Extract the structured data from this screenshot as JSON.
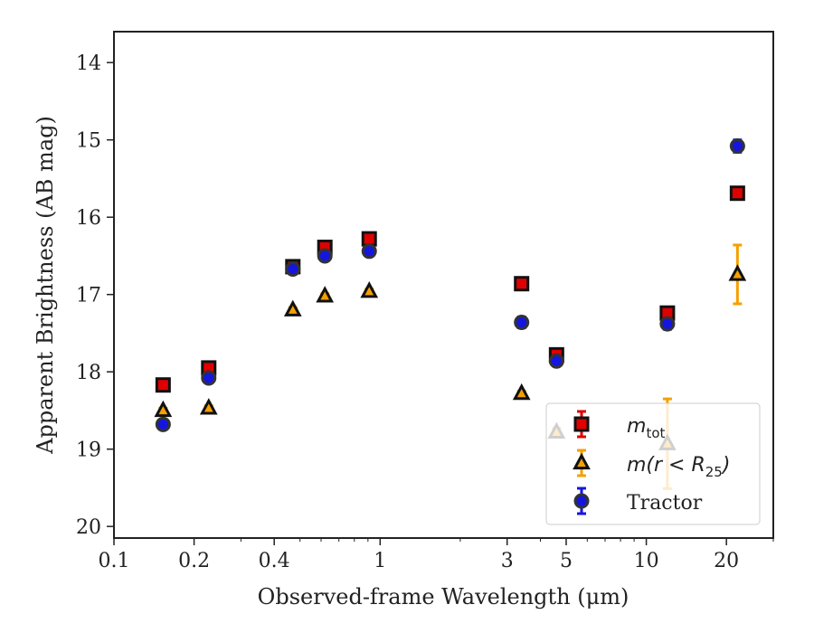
{
  "chart_data": {
    "type": "scatter",
    "xlabel": "Observed-frame Wavelength (μm)",
    "ylabel": "Apparent Brightness (AB mag)",
    "x_scale": "log",
    "xlim": [
      0.1,
      30
    ],
    "ylim": [
      20.15,
      13.6
    ],
    "y_inverted": true,
    "x_ticks": [
      0.1,
      0.2,
      0.4,
      1,
      3,
      5,
      10,
      20
    ],
    "x_tick_labels": [
      "0.1",
      "0.2",
      "0.4",
      "1",
      "3",
      "5",
      "10",
      "20"
    ],
    "y_ticks": [
      14,
      15,
      16,
      17,
      18,
      19,
      20
    ],
    "y_tick_labels": [
      "14",
      "15",
      "16",
      "17",
      "18",
      "19",
      "20"
    ],
    "legend_position": "lower-right",
    "series": [
      {
        "name": "m_tot",
        "legend_main": "m",
        "legend_sub": "tot",
        "marker": "square",
        "color": "#e00000",
        "edge_color": "#111111",
        "error_color": "#e00000",
        "points": [
          {
            "x": 0.153,
            "y": 18.17,
            "err": 0.05
          },
          {
            "x": 0.227,
            "y": 17.95,
            "err": 0.05
          },
          {
            "x": 0.47,
            "y": 16.64,
            "err": 0.05
          },
          {
            "x": 0.62,
            "y": 16.39,
            "err": 0.05
          },
          {
            "x": 0.91,
            "y": 16.28,
            "err": 0.05
          },
          {
            "x": 3.4,
            "y": 16.86,
            "err": 0.05
          },
          {
            "x": 4.6,
            "y": 17.78,
            "err": 0.05
          },
          {
            "x": 12.0,
            "y": 17.24,
            "err": 0.05
          },
          {
            "x": 22.0,
            "y": 15.69,
            "err": 0.05
          }
        ]
      },
      {
        "name": "m(r < R25)",
        "legend_main": "m(r < R",
        "legend_sub": "25",
        "legend_tail": ")",
        "marker": "triangle",
        "color": "#f5a000",
        "edge_color": "#111111",
        "error_color": "#f5a000",
        "points": [
          {
            "x": 0.153,
            "y": 18.5,
            "err": 0.03
          },
          {
            "x": 0.227,
            "y": 18.47,
            "err": 0.03
          },
          {
            "x": 0.47,
            "y": 17.2,
            "err": 0.03
          },
          {
            "x": 0.62,
            "y": 17.02,
            "err": 0.03
          },
          {
            "x": 0.91,
            "y": 16.96,
            "err": 0.03
          },
          {
            "x": 3.4,
            "y": 18.28,
            "err": 0.03
          },
          {
            "x": 4.6,
            "y": 18.78,
            "err": 0.05
          },
          {
            "x": 12.0,
            "y": 18.93,
            "err": 0.58
          },
          {
            "x": 22.0,
            "y": 16.74,
            "err": 0.38
          }
        ]
      },
      {
        "name": "Tractor",
        "marker": "circle",
        "color": "#1515e0",
        "edge_color": "#333333",
        "error_color": "#1515e0",
        "points": [
          {
            "x": 0.153,
            "y": 18.68,
            "err": 0.04
          },
          {
            "x": 0.227,
            "y": 18.08,
            "err": 0.04
          },
          {
            "x": 0.47,
            "y": 16.67,
            "err": 0.04
          },
          {
            "x": 0.62,
            "y": 16.5,
            "err": 0.04
          },
          {
            "x": 0.91,
            "y": 16.44,
            "err": 0.04
          },
          {
            "x": 3.4,
            "y": 17.36,
            "err": 0.07
          },
          {
            "x": 4.6,
            "y": 17.86,
            "err": 0.05
          },
          {
            "x": 12.0,
            "y": 17.38,
            "err": 0.07
          },
          {
            "x": 22.0,
            "y": 15.08,
            "err": 0.08
          }
        ]
      }
    ]
  }
}
